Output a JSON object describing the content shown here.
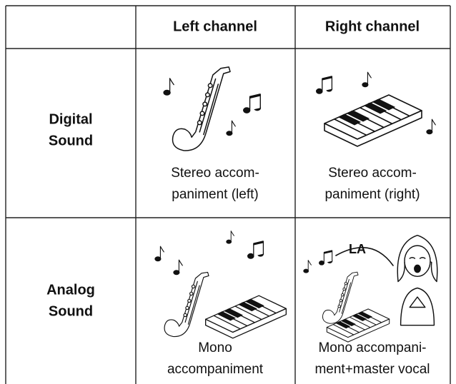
{
  "table": {
    "header": {
      "left": "Left channel",
      "right": "Right channel"
    },
    "rows": [
      {
        "label": [
          "Digital",
          "Sound"
        ],
        "left": [
          "Stereo accom-",
          "paniment (left)"
        ],
        "right": [
          "Stereo accom-",
          "paniment (right)"
        ]
      },
      {
        "label": [
          "Analog",
          "Sound"
        ],
        "left": [
          "Mono",
          "accompaniment"
        ],
        "right": [
          "Mono accompani-",
          "ment+master vocal"
        ]
      }
    ],
    "illustration_text": "LA"
  }
}
